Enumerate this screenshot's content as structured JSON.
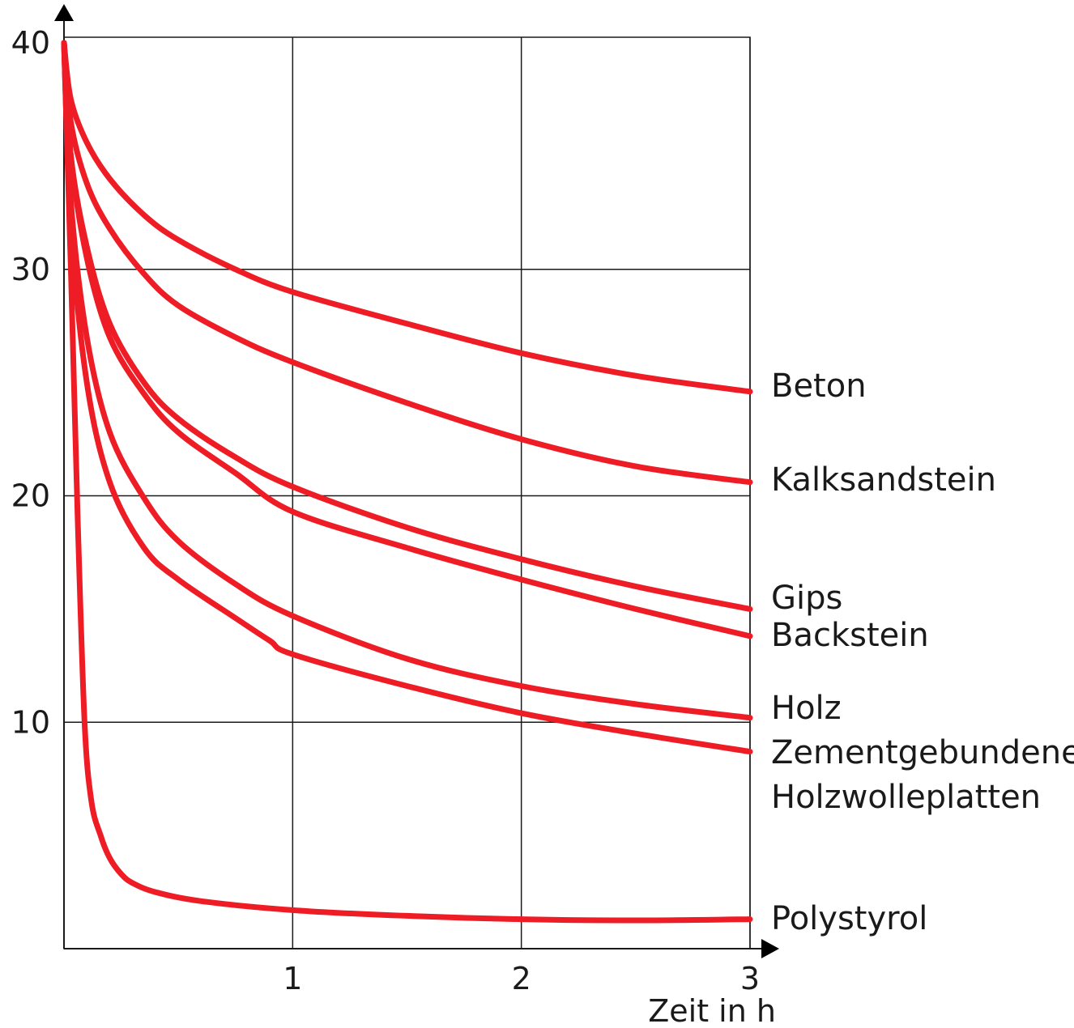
{
  "chart_data": {
    "type": "line",
    "title": "",
    "xlabel": "Zeit in h",
    "ylabel": "",
    "xlim": [
      0,
      3
    ],
    "ylim": [
      0,
      40
    ],
    "x_ticks": [
      1,
      2,
      3
    ],
    "y_ticks": [
      10,
      20,
      30,
      40
    ],
    "x_tick_labels": [
      "1",
      "2",
      "3"
    ],
    "y_tick_labels": [
      "10",
      "20",
      "30",
      "40"
    ],
    "grid": true,
    "legend": "inline labels at right end of each curve",
    "line_color": "#ee1c25",
    "series": [
      {
        "name": "Beton",
        "label_lines": [
          "Beton"
        ],
        "x": [
          0,
          0.03,
          0.1,
          0.2,
          0.35,
          0.5,
          0.75,
          1.0,
          1.5,
          2.0,
          2.5,
          3.0
        ],
        "y": [
          40,
          37.5,
          35.6,
          34.0,
          32.4,
          31.3,
          30.0,
          29.0,
          27.6,
          26.3,
          25.3,
          24.6
        ]
      },
      {
        "name": "Kalksandstein",
        "label_lines": [
          "Kalksandstein"
        ],
        "x": [
          0,
          0.03,
          0.1,
          0.2,
          0.35,
          0.5,
          0.75,
          1.0,
          1.5,
          2.0,
          2.5,
          3.0
        ],
        "y": [
          40,
          36.5,
          33.8,
          31.8,
          29.8,
          28.4,
          27.0,
          25.9,
          24.1,
          22.5,
          21.3,
          20.6
        ]
      },
      {
        "name": "Gips",
        "label_lines": [
          "Gips"
        ],
        "x": [
          0,
          0.03,
          0.1,
          0.2,
          0.35,
          0.5,
          0.75,
          1.0,
          1.5,
          2.0,
          2.5,
          3.0
        ],
        "y": [
          40,
          35.0,
          31.0,
          27.6,
          25.0,
          23.4,
          21.7,
          20.4,
          18.6,
          17.2,
          16.0,
          15.0
        ]
      },
      {
        "name": "Backstein",
        "label_lines": [
          "Backstein"
        ],
        "x": [
          0,
          0.03,
          0.1,
          0.2,
          0.35,
          0.5,
          0.75,
          1.0,
          1.5,
          2.0,
          2.5,
          3.0
        ],
        "y": [
          40,
          35.0,
          30.5,
          27.0,
          24.5,
          22.8,
          21.0,
          19.3,
          17.7,
          16.3,
          15.0,
          13.8
        ]
      },
      {
        "name": "Holz",
        "label_lines": [
          "Holz"
        ],
        "x": [
          0,
          0.03,
          0.1,
          0.2,
          0.35,
          0.5,
          0.75,
          1.0,
          1.5,
          2.0,
          2.5,
          3.0
        ],
        "y": [
          40,
          33.0,
          27.0,
          22.8,
          19.9,
          18.0,
          16.1,
          14.7,
          12.8,
          11.6,
          10.8,
          10.2
        ]
      },
      {
        "name": "Zementgebundene Holzwolleplatten",
        "label_lines": [
          "Zementgebundene",
          "Holzwolleplatten"
        ],
        "x": [
          0,
          0.03,
          0.1,
          0.2,
          0.35,
          0.5,
          0.75,
          0.9,
          1.0,
          1.5,
          2.0,
          2.5,
          3.0
        ],
        "y": [
          40,
          32.0,
          25.0,
          20.6,
          17.7,
          16.3,
          14.6,
          13.6,
          13.0,
          11.6,
          10.4,
          9.5,
          8.7
        ]
      },
      {
        "name": "Polystyrol",
        "label_lines": [
          "Polystyrol"
        ],
        "x": [
          0,
          0.03,
          0.06,
          0.09,
          0.12,
          0.16,
          0.2,
          0.25,
          0.3,
          0.4,
          0.6,
          1.0,
          1.5,
          2.0,
          2.5,
          3.0
        ],
        "y": [
          40,
          30.0,
          19.0,
          10.0,
          6.5,
          5.0,
          4.0,
          3.3,
          2.9,
          2.5,
          2.1,
          1.7,
          1.45,
          1.3,
          1.25,
          1.3
        ]
      }
    ]
  }
}
